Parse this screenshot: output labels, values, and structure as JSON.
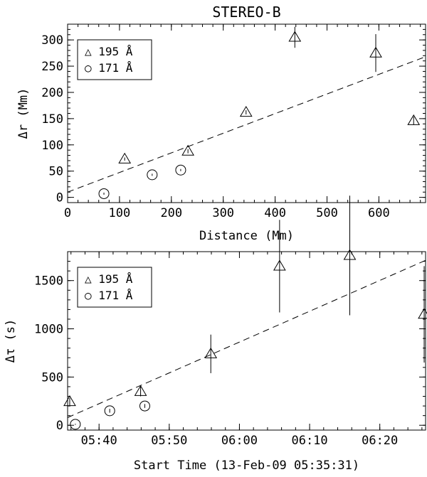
{
  "chart_data": [
    {
      "type": "scatter",
      "title": "STEREO-B",
      "xlabel": "Distance (Mm)",
      "ylabel": "Δr (Mm)",
      "xlim": [
        0,
        690
      ],
      "ylim": [
        -10,
        330
      ],
      "xticks": [
        0,
        100,
        200,
        300,
        400,
        500,
        600
      ],
      "yticks": [
        0,
        50,
        100,
        150,
        200,
        250,
        300
      ],
      "xtick_labels": [
        "0",
        "100",
        "200",
        "300",
        "400",
        "500",
        "600"
      ],
      "ytick_labels": [
        "0",
        "50",
        "100",
        "150",
        "200",
        "250",
        "300"
      ],
      "legend": [
        "△ 195 Å",
        "○ 171 Å"
      ],
      "legend_position": "top-left",
      "grid": false,
      "series": [
        {
          "name": "195 Å",
          "marker": "triangle",
          "points": [
            {
              "x": 110,
              "y": 73,
              "err": 3
            },
            {
              "x": 232,
              "y": 88,
              "err": 4
            },
            {
              "x": 344,
              "y": 162,
              "err": 4
            },
            {
              "x": 438,
              "y": 305,
              "err": 20
            },
            {
              "x": 594,
              "y": 275,
              "err": 36
            },
            {
              "x": 667,
              "y": 146,
              "err": 8
            }
          ]
        },
        {
          "name": "171 Å",
          "marker": "circle",
          "points": [
            {
              "x": 70,
              "y": 7,
              "err": 2
            },
            {
              "x": 163,
              "y": 43,
              "err": 2
            },
            {
              "x": 218,
              "y": 52,
              "err": 2
            }
          ]
        }
      ],
      "fit_line": {
        "style": "dashed",
        "x": [
          0,
          690
        ],
        "y": [
          10,
          268
        ]
      }
    },
    {
      "type": "scatter",
      "xlabel": "Start Time (13-Feb-09 05:35:31)",
      "ylabel": "Δτ (s)",
      "x_unit": "minutes after 05:35:31",
      "xlim": [
        0,
        51
      ],
      "ylim": [
        -50,
        1800
      ],
      "xticks": [
        4.48,
        14.48,
        24.48,
        34.48,
        44.48
      ],
      "xtick_labels": [
        "05:40",
        "05:50",
        "06:00",
        "06:10",
        "06:20"
      ],
      "yticks": [
        0,
        500,
        1000,
        1500
      ],
      "ytick_labels": [
        "0",
        "500",
        "1000",
        "1500"
      ],
      "legend": [
        "△ 195 Å",
        "○ 171 Å"
      ],
      "legend_position": "top-left",
      "grid": false,
      "series": [
        {
          "name": "195 Å",
          "marker": "triangle",
          "points": [
            {
              "x": 0.3,
              "y": 245,
              "err": 40
            },
            {
              "x": 10.4,
              "y": 350,
              "err": 50
            },
            {
              "x": 20.4,
              "y": 740,
              "err": 200
            },
            {
              "x": 30.2,
              "y": 1650,
              "err": 480
            },
            {
              "x": 40.2,
              "y": 1760,
              "err": 620
            },
            {
              "x": 50.8,
              "y": 1150,
              "err": 500
            }
          ]
        },
        {
          "name": "171 Å",
          "marker": "circle",
          "points": [
            {
              "x": 1.1,
              "y": 10,
              "err": 5
            },
            {
              "x": 6.0,
              "y": 150,
              "err": 20
            },
            {
              "x": 11.0,
              "y": 200,
              "err": 20
            }
          ]
        }
      ],
      "fit_line": {
        "style": "dashed",
        "x": [
          0,
          51
        ],
        "y": [
          80,
          1710
        ]
      }
    }
  ]
}
